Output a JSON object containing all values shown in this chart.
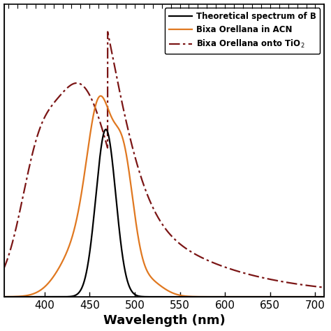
{
  "title": "",
  "xlabel": "Wavelength (nm)",
  "ylabel": "",
  "xlim": [
    355,
    710
  ],
  "ylim": [
    0,
    1.05
  ],
  "x_ticks": [
    400,
    450,
    500,
    550,
    600,
    650,
    700
  ],
  "legend_entries": [
    {
      "label": "Theoretical spectrum of B",
      "color": "#000000",
      "linestyle": "solid"
    },
    {
      "label": "Bixa Orellana in ACN",
      "color": "#E07820",
      "linestyle": "solid"
    },
    {
      "label": "Bixa Orellana onto TiO$_2$",
      "color": "#7B1515",
      "linestyle": "dashdot"
    }
  ],
  "background_color": "#ffffff"
}
